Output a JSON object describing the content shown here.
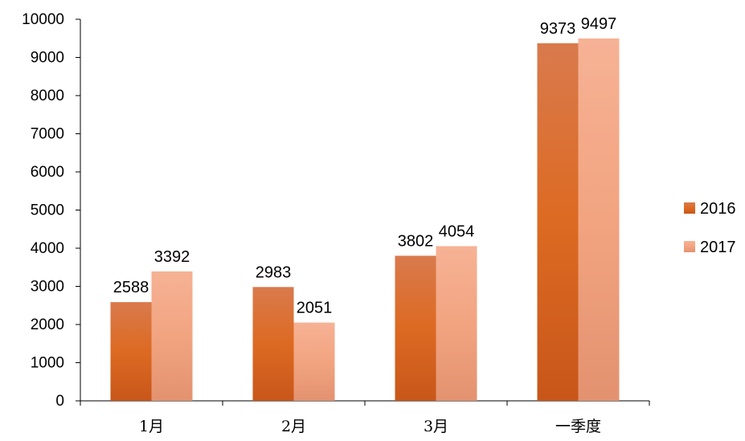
{
  "chart_data": {
    "type": "bar",
    "title": "",
    "xlabel": "",
    "ylabel": "",
    "categories": [
      "1月",
      "2月",
      "3月",
      "一季度"
    ],
    "series": [
      {
        "name": "2016",
        "values": [
          2588,
          2983,
          3802,
          9373
        ],
        "color": "#d9661e"
      },
      {
        "name": "2017",
        "values": [
          3392,
          2051,
          4054,
          9497
        ],
        "color": "#f0a07c"
      }
    ],
    "ylim": [
      0,
      10000
    ],
    "yticks": [
      0,
      1000,
      2000,
      3000,
      4000,
      5000,
      6000,
      7000,
      8000,
      9000,
      10000
    ],
    "grid": false,
    "legend": "right"
  }
}
